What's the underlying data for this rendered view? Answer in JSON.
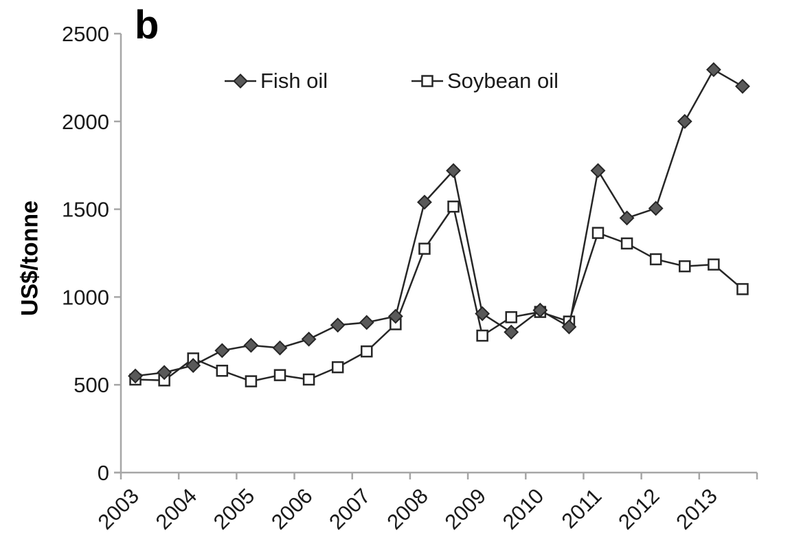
{
  "panel_label": "b",
  "colors": {
    "background": "#ffffff",
    "axis": "#a6a6a6",
    "text": "#1a1a1a",
    "series_line": "#262626",
    "fish_marker_fill": "#595959",
    "soybean_marker_fill": "#ffffff"
  },
  "chart_data": {
    "type": "line",
    "title": "",
    "xlabel": "",
    "ylabel": "US$/tonne",
    "grid": false,
    "legend_position": "top-inside",
    "ylim": [
      0,
      2500
    ],
    "yticks": [
      0,
      500,
      1000,
      1500,
      2000,
      2500
    ],
    "categories": [
      "2003",
      "2004",
      "2005",
      "2006",
      "2007",
      "2008",
      "2009",
      "2010",
      "2011",
      "2012",
      "2013"
    ],
    "points_per_category": 2,
    "series": [
      {
        "name": "Fish oil",
        "marker": "filled-diamond",
        "line_color": "#262626",
        "marker_fill": "#595959",
        "values": [
          550,
          570,
          610,
          695,
          725,
          710,
          760,
          840,
          855,
          890,
          1540,
          1720,
          905,
          800,
          925,
          830,
          1720,
          1450,
          1505,
          2000,
          2295,
          2200
        ]
      },
      {
        "name": "Soybean oil",
        "marker": "open-square",
        "line_color": "#262626",
        "marker_fill": "#ffffff",
        "values": [
          530,
          525,
          650,
          580,
          520,
          555,
          530,
          600,
          690,
          845,
          1275,
          1515,
          780,
          885,
          915,
          860,
          1365,
          1305,
          1215,
          1175,
          1185,
          1045
        ]
      }
    ]
  }
}
